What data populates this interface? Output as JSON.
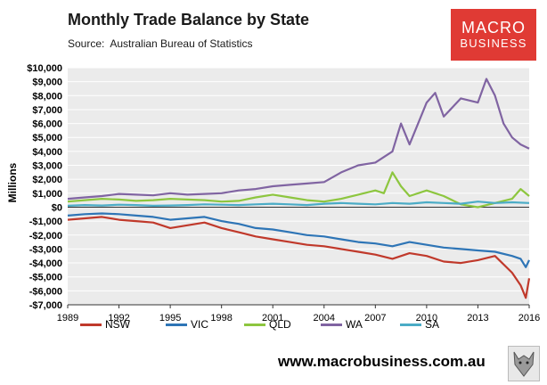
{
  "header": {
    "title": "Monthly Trade Balance by State",
    "source_label": "Source:",
    "source_text": "Australian Bureau of Statistics"
  },
  "logo": {
    "line1": "MACRO",
    "line2": "BUSINESS"
  },
  "footer": {
    "url": "www.macrobusiness.com.au"
  },
  "chart_data": {
    "type": "line",
    "title": "Monthly Trade Balance by State",
    "xlabel": "",
    "ylabel": "Millions",
    "xlim": [
      1989,
      2016
    ],
    "ylim": [
      -7000,
      10000
    ],
    "x_ticks": [
      1989,
      1992,
      1995,
      1998,
      2001,
      2004,
      2007,
      2010,
      2013,
      2016
    ],
    "y_ticks": [
      10000,
      9000,
      8000,
      7000,
      6000,
      5000,
      4000,
      3000,
      2000,
      1000,
      0,
      -1000,
      -2000,
      -3000,
      -4000,
      -5000,
      -6000,
      -7000
    ],
    "y_tick_labels": [
      "$10,000",
      "$9,000",
      "$8,000",
      "$7,000",
      "$6,000",
      "$5,000",
      "$4,000",
      "$3,000",
      "$2,000",
      "$1,000",
      "$0",
      "-$1,000",
      "-$2,000",
      "-$3,000",
      "-$4,000",
      "-$5,000",
      "-$6,000",
      "-$7,000"
    ],
    "grid": true,
    "legend": "bottom",
    "series": [
      {
        "name": "NSW",
        "color": "#c0392b",
        "x": [
          1989,
          1990,
          1991,
          1992,
          1993,
          1994,
          1995,
          1996,
          1997,
          1998,
          1999,
          2000,
          2001,
          2002,
          2003,
          2004,
          2005,
          2006,
          2007,
          2008,
          2009,
          2010,
          2011,
          2012,
          2013,
          2014,
          2015,
          2015.5,
          2015.8,
          2016
        ],
        "values": [
          -900,
          -800,
          -700,
          -900,
          -1000,
          -1100,
          -1500,
          -1300,
          -1100,
          -1500,
          -1800,
          -2100,
          -2300,
          -2500,
          -2700,
          -2800,
          -3000,
          -3200,
          -3400,
          -3700,
          -3300,
          -3500,
          -3900,
          -4000,
          -3800,
          -3500,
          -4700,
          -5600,
          -6500,
          -5100
        ]
      },
      {
        "name": "VIC",
        "color": "#2e75b6",
        "x": [
          1989,
          1990,
          1991,
          1992,
          1993,
          1994,
          1995,
          1996,
          1997,
          1998,
          1999,
          2000,
          2001,
          2002,
          2003,
          2004,
          2005,
          2006,
          2007,
          2008,
          2009,
          2010,
          2011,
          2012,
          2013,
          2014,
          2015,
          2015.5,
          2015.8,
          2016
        ],
        "values": [
          -600,
          -500,
          -450,
          -500,
          -600,
          -700,
          -900,
          -800,
          -700,
          -1000,
          -1200,
          -1500,
          -1600,
          -1800,
          -2000,
          -2100,
          -2300,
          -2500,
          -2600,
          -2800,
          -2500,
          -2700,
          -2900,
          -3000,
          -3100,
          -3200,
          -3500,
          -3700,
          -4300,
          -3800
        ]
      },
      {
        "name": "QLD",
        "color": "#8dc63f",
        "x": [
          1989,
          1990,
          1991,
          1992,
          1993,
          1994,
          1995,
          1996,
          1997,
          1998,
          1999,
          2000,
          2001,
          2002,
          2003,
          2004,
          2005,
          2006,
          2007,
          2007.5,
          2008,
          2008.5,
          2009,
          2010,
          2011,
          2012,
          2013,
          2014,
          2015,
          2015.5,
          2016
        ],
        "values": [
          400,
          500,
          600,
          550,
          450,
          500,
          600,
          550,
          500,
          400,
          450,
          700,
          900,
          700,
          500,
          400,
          600,
          900,
          1200,
          1000,
          2500,
          1500,
          800,
          1200,
          800,
          200,
          0,
          300,
          600,
          1300,
          800
        ]
      },
      {
        "name": "WA",
        "color": "#8064a2",
        "x": [
          1989,
          1990,
          1991,
          1992,
          1993,
          1994,
          1995,
          1996,
          1997,
          1998,
          1999,
          2000,
          2001,
          2002,
          2003,
          2004,
          2005,
          2006,
          2007,
          2008,
          2008.5,
          2009,
          2010,
          2010.5,
          2011,
          2012,
          2013,
          2013.5,
          2014,
          2014.5,
          2015,
          2015.5,
          2016
        ],
        "values": [
          600,
          700,
          800,
          950,
          900,
          850,
          1000,
          900,
          950,
          1000,
          1200,
          1300,
          1500,
          1600,
          1700,
          1800,
          2500,
          3000,
          3200,
          4000,
          6000,
          4500,
          7500,
          8200,
          6500,
          7800,
          7500,
          9200,
          8000,
          6000,
          5000,
          4500,
          4200
        ]
      },
      {
        "name": "SA",
        "color": "#4bacc6",
        "x": [
          1989,
          1990,
          1991,
          1992,
          1993,
          1994,
          1995,
          1996,
          1997,
          1998,
          1999,
          2000,
          2001,
          2002,
          2003,
          2004,
          2005,
          2006,
          2007,
          2008,
          2009,
          2010,
          2011,
          2012,
          2013,
          2014,
          2015,
          2016
        ],
        "values": [
          100,
          150,
          120,
          180,
          150,
          100,
          120,
          150,
          200,
          180,
          150,
          200,
          250,
          200,
          150,
          250,
          300,
          250,
          200,
          300,
          250,
          350,
          300,
          250,
          400,
          300,
          350,
          300
        ]
      }
    ]
  }
}
